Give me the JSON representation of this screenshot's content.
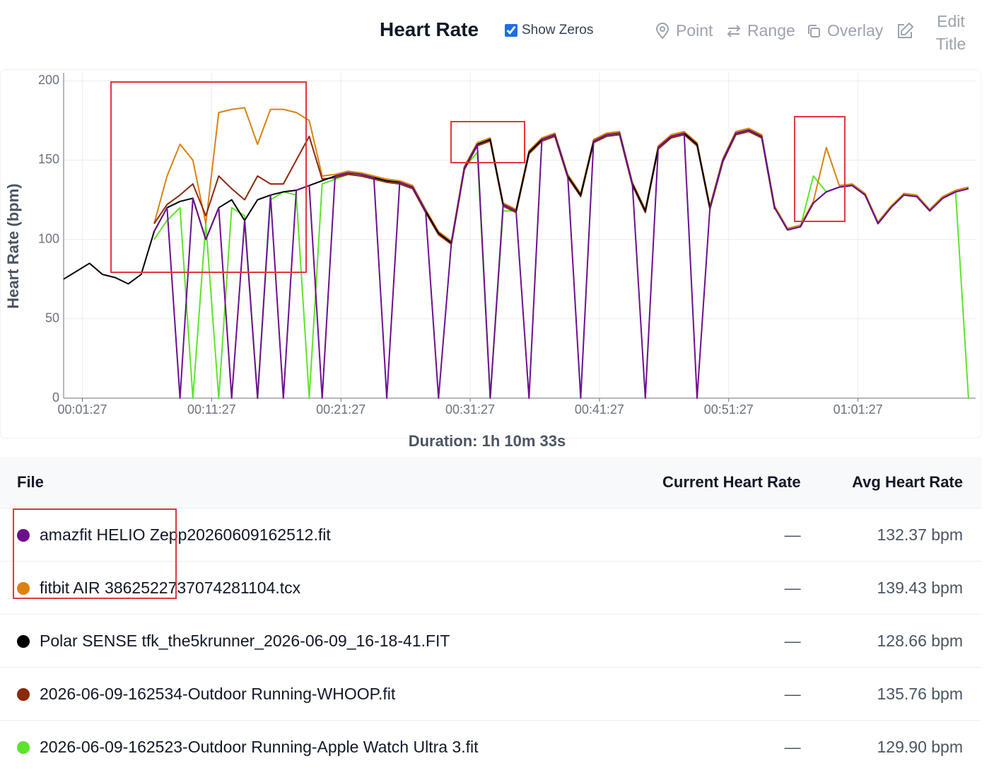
{
  "header": {
    "title": "Heart Rate",
    "show_zeros_label": "Show Zeros",
    "show_zeros": true,
    "tools": [
      "Point",
      "Range",
      "Overlay",
      "Edit Title"
    ]
  },
  "chart_data": {
    "type": "line",
    "ylabel": "Heart Rate (bpm)",
    "xlabel": "Duration: 1h 10m 33s",
    "xlim": [
      0,
      70.55
    ],
    "ylim": [
      0,
      205
    ],
    "xticks": [
      {
        "value": 1.45,
        "label": "00:01:27"
      },
      {
        "value": 11.45,
        "label": "00:11:27"
      },
      {
        "value": 21.45,
        "label": "00:21:27"
      },
      {
        "value": 31.45,
        "label": "00:31:27"
      },
      {
        "value": 41.45,
        "label": "00:41:27"
      },
      {
        "value": 51.45,
        "label": "00:51:27"
      },
      {
        "value": 61.45,
        "label": "01:01:27"
      }
    ],
    "yticks": [
      0,
      50,
      100,
      150,
      200
    ],
    "grid": true,
    "x": [
      0,
      1,
      2,
      3,
      4,
      5,
      6,
      7,
      8,
      9,
      10,
      11,
      12,
      13,
      14,
      15,
      16,
      17,
      18,
      19,
      20,
      21,
      22,
      23,
      24,
      25,
      26,
      27,
      28,
      29,
      30,
      31,
      32,
      33,
      34,
      35,
      36,
      37,
      38,
      39,
      40,
      41,
      42,
      43,
      44,
      45,
      46,
      47,
      48,
      49,
      50,
      51,
      52,
      53,
      54,
      55,
      56,
      57,
      58,
      59,
      60,
      61,
      62,
      63,
      64,
      65,
      66,
      67,
      68,
      69,
      70
    ],
    "series": [
      {
        "name": "amazfit HELIO Zepp20260609162512.fit",
        "color": "#6b0f8f",
        "values": [
          null,
          null,
          null,
          null,
          null,
          null,
          null,
          105,
          120,
          0,
          126,
          100,
          120,
          0,
          112,
          0,
          128,
          0,
          131,
          134,
          0,
          140,
          142,
          141,
          139,
          0,
          136,
          133,
          118,
          0,
          98,
          145,
          160,
          0,
          122,
          118,
          0,
          163,
          166,
          140,
          0,
          162,
          166,
          167,
          135,
          0,
          158,
          165,
          167,
          0,
          120,
          150,
          167,
          169,
          165,
          120,
          106,
          108,
          123,
          130,
          133,
          134,
          128,
          110,
          120,
          128,
          127,
          118,
          126,
          130,
          132
        ]
      },
      {
        "name": "fitbit AIR 3862522737074281104.tcx",
        "color": "#d98212",
        "values": [
          null,
          null,
          null,
          null,
          null,
          null,
          null,
          110,
          140,
          160,
          150,
          110,
          180,
          182,
          183,
          160,
          182,
          182,
          180,
          175,
          140,
          141,
          143,
          142,
          140,
          138,
          137,
          134,
          119,
          105,
          99,
          146,
          161,
          164,
          123,
          119,
          156,
          164,
          167,
          141,
          129,
          163,
          167,
          168,
          136,
          119,
          159,
          166,
          168,
          161,
          121,
          151,
          168,
          170,
          166,
          121,
          107,
          109,
          124,
          158,
          134,
          135,
          129,
          111,
          121,
          129,
          128,
          119,
          127,
          131,
          133
        ]
      },
      {
        "name": "Polar SENSE tfk_the5krunner_2026-06-09_16-18-41.FIT",
        "color": "#000000",
        "values": [
          75,
          80,
          85,
          78,
          76,
          72,
          78,
          105,
          120,
          124,
          126,
          100,
          120,
          125,
          112,
          125,
          128,
          130,
          131,
          134,
          137,
          140,
          142,
          141,
          139,
          137,
          136,
          133,
          118,
          104,
          98,
          145,
          160,
          163,
          122,
          118,
          155,
          163,
          166,
          140,
          128,
          162,
          166,
          167,
          135,
          118,
          158,
          165,
          167,
          160,
          120,
          150,
          167,
          169,
          165,
          120,
          106,
          108,
          123,
          130,
          133,
          134,
          128,
          110,
          120,
          128,
          127,
          118,
          126,
          130,
          132
        ]
      },
      {
        "name": "2026-06-09-162534-Outdoor Running-WHOOP.fit",
        "color": "#8a2a0c",
        "values": [
          null,
          null,
          null,
          null,
          null,
          null,
          null,
          110,
          122,
          128,
          135,
          115,
          140,
          132,
          125,
          140,
          135,
          135,
          150,
          165,
          138,
          139,
          141,
          140,
          138,
          136,
          135,
          132,
          117,
          103,
          97,
          144,
          159,
          162,
          121,
          117,
          154,
          162,
          165,
          139,
          127,
          161,
          165,
          166,
          134,
          117,
          157,
          164,
          166,
          159,
          119,
          149,
          166,
          168,
          164,
          119,
          null,
          null,
          null,
          null,
          null,
          null,
          null,
          null,
          null,
          null,
          null,
          null,
          null,
          null,
          null
        ]
      },
      {
        "name": "2026-06-09-162523-Outdoor Running-Apple Watch Ultra 3.fit",
        "color": "#5ee32b",
        "values": [
          null,
          null,
          null,
          null,
          null,
          null,
          null,
          100,
          112,
          120,
          0,
          110,
          0,
          120,
          115,
          0,
          125,
          130,
          128,
          0,
          135,
          138,
          141,
          142,
          139,
          137,
          136,
          133,
          118,
          104,
          98,
          145,
          155,
          0,
          118,
          118,
          155,
          163,
          166,
          140,
          128,
          162,
          166,
          167,
          135,
          118,
          158,
          165,
          167,
          160,
          120,
          150,
          167,
          169,
          165,
          120,
          106,
          108,
          140,
          130,
          133,
          134,
          128,
          110,
          120,
          128,
          127,
          118,
          126,
          130,
          0
        ]
      }
    ]
  },
  "table": {
    "columns": [
      "File",
      "Current Heart Rate",
      "Avg Heart Rate"
    ],
    "rows": [
      [
        "—",
        "132.37 bpm"
      ],
      [
        "—",
        "139.43 bpm"
      ],
      [
        "—",
        "128.66 bpm"
      ],
      [
        "—",
        "135.76 bpm"
      ],
      [
        "—",
        "129.90 bpm"
      ]
    ]
  }
}
